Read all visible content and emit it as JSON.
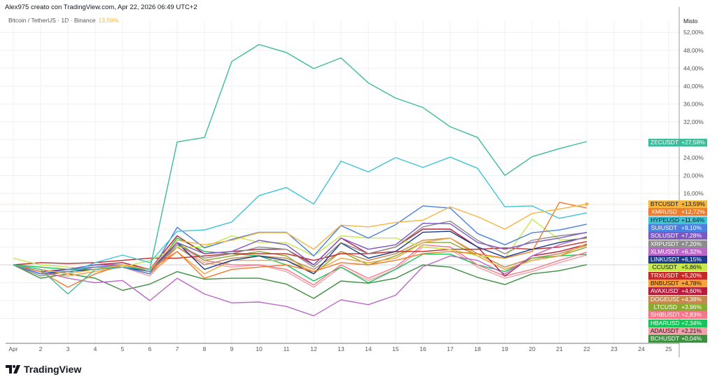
{
  "header": {
    "credit": "Alex975 creato con TradingView.com, Apr 22, 2026 06:49 UTC+2",
    "symbol": "Bitcoin / TetherUS · 1D · Binance",
    "symbol_value": "13,59%"
  },
  "logo": "TradingView",
  "chart_data": {
    "type": "line",
    "ylabel": "Misto",
    "y_ticks": [
      "52,00%",
      "48,00%",
      "44,00%",
      "40,00%",
      "36,00%",
      "32,00%",
      "24,00%",
      "20,00%",
      "16,00%"
    ],
    "y_tick_values": [
      52,
      48,
      44,
      40,
      36,
      32,
      24,
      20,
      16
    ],
    "ylim": [
      -18,
      56
    ],
    "x_ticks": [
      "Apr",
      "2",
      "3",
      "4",
      "5",
      "6",
      "7",
      "8",
      "9",
      "10",
      "11",
      "12",
      "13",
      "14",
      "15",
      "16",
      "17",
      "18",
      "19",
      "20",
      "21",
      "22",
      "23",
      "24",
      "25"
    ],
    "x": [
      1,
      2,
      3,
      4,
      5,
      6,
      7,
      8,
      9,
      10,
      11,
      12,
      13,
      14,
      15,
      16,
      17,
      18,
      19,
      20,
      21,
      22
    ],
    "grid": true,
    "series": [
      {
        "name": "ZECUSDT",
        "label": "+27,58%",
        "color": "#3dbb9a",
        "values": [
          0,
          -1,
          -6.5,
          -1,
          -0.5,
          -1,
          27.5,
          28.5,
          45.5,
          49.3,
          47.5,
          43.9,
          46.3,
          40.7,
          37.3,
          35.2,
          30.9,
          28.5,
          20,
          24.2,
          26,
          27.58
        ]
      },
      {
        "name": "BTCUSDT",
        "label": "+13,59%",
        "color": "#f5b540",
        "values": [
          0,
          -1,
          -2,
          -1,
          0,
          -1,
          5.5,
          4.5,
          5.5,
          7.2,
          7.2,
          3.5,
          8.9,
          8.5,
          9.5,
          10,
          13,
          10.8,
          8,
          11.5,
          12.5,
          13.59
        ]
      },
      {
        "name": "XMRUSD",
        "label": "+12,72%",
        "color": "#f07b2a",
        "values": [
          0,
          -1.5,
          -5,
          -2,
          0,
          -1,
          3,
          -3,
          -1,
          -0.5,
          0,
          -1.5,
          0.5,
          0,
          1,
          2.5,
          3,
          2.5,
          1.5,
          3,
          14,
          12.72
        ]
      },
      {
        "name": "HYPEUSD",
        "label": "+11,64%",
        "color": "#3fc4d6",
        "values": [
          0,
          -1,
          -2,
          0.5,
          2.2,
          0.5,
          7.5,
          7.8,
          9.6,
          15.5,
          17.3,
          13.6,
          23.2,
          20.8,
          24,
          21.8,
          24.1,
          21.6,
          13,
          13.2,
          10.4,
          11.64
        ]
      },
      {
        "name": "SUIUSDT",
        "label": "+9,10%",
        "color": "#4a80e0",
        "values": [
          0,
          -2,
          -1,
          -0.5,
          -0.5,
          -2,
          8.4,
          3.8,
          5.7,
          7.3,
          7.3,
          2,
          8.8,
          6,
          9,
          13.2,
          12.7,
          7,
          4.5,
          7.2,
          7.8,
          9.1
        ]
      },
      {
        "name": "SOLUSDT",
        "label": "+7,28%",
        "color": "#7e57c2",
        "values": [
          0,
          -2,
          -1,
          0,
          0,
          -1,
          5,
          2.5,
          3,
          5.5,
          4.5,
          0,
          6,
          3.5,
          4.5,
          9.3,
          9.2,
          5,
          3.5,
          5,
          6,
          7.28
        ]
      },
      {
        "name": "XRPUSDT",
        "label": "+7,20%",
        "color": "#8c8c8c",
        "values": [
          0,
          -2.5,
          -1.5,
          -0.5,
          0,
          -1.5,
          4.5,
          1.5,
          2.5,
          4,
          3.5,
          -0.5,
          5,
          2.5,
          4,
          8.5,
          9.8,
          5.5,
          2.5,
          5.5,
          6.5,
          7.2
        ]
      },
      {
        "name": "XLMUSDT",
        "label": "+6,32%",
        "color": "#ba68c8",
        "values": [
          0,
          -1.5,
          -3,
          -4,
          -3.5,
          -8,
          -3,
          -6.5,
          -8.5,
          -8.3,
          -9.3,
          -11.4,
          -7.8,
          -8.9,
          -6.8,
          -0.4,
          2,
          1,
          -2,
          2,
          4.5,
          6.32
        ]
      },
      {
        "name": "LINKUSDT",
        "label": "+6,15%",
        "color": "#1a3a8a",
        "values": [
          0,
          -2,
          -1.5,
          -1,
          -0.5,
          -1.5,
          5,
          -1,
          1,
          2,
          1,
          -2,
          4.9,
          1.5,
          3,
          7.3,
          7.5,
          4,
          1.7,
          3.5,
          5,
          6.15
        ]
      },
      {
        "name": "CCUSDT",
        "label": "+5,86%",
        "color": "#c6e84a",
        "values": [
          1.5,
          0,
          -0.5,
          -1,
          -0.5,
          1,
          4,
          4,
          6.5,
          5,
          5,
          2,
          6.5,
          6,
          6,
          4,
          3.5,
          2,
          1.5,
          10.2,
          5.6,
          5.86
        ]
      },
      {
        "name": "TRXUSDT",
        "label": "+5,20%",
        "color": "#c62828",
        "values": [
          0,
          0.5,
          0.3,
          0.5,
          1,
          1.5,
          1.5,
          2,
          2.5,
          2.5,
          2.5,
          1,
          2.5,
          2.5,
          3,
          3,
          3.5,
          3.5,
          3.8,
          3.5,
          4,
          5.2
        ]
      },
      {
        "name": "BNBUSDT",
        "label": "+4,78%",
        "color": "#f7a23a",
        "values": [
          0,
          -2,
          -2.5,
          -1.5,
          -0.5,
          -2,
          3,
          -2,
          1,
          1,
          1,
          -1.5,
          1.5,
          0.5,
          1.5,
          5,
          6,
          2,
          -1,
          1,
          2,
          4.78
        ]
      },
      {
        "name": "AVAXUSDT",
        "label": "+4,60%",
        "color": "#b71c3c",
        "values": [
          0,
          -1.5,
          -1,
          0,
          0.5,
          -1,
          6.5,
          2.5,
          3,
          3.5,
          3.5,
          0,
          6,
          2.5,
          4,
          8,
          8,
          4,
          -2.5,
          2,
          3,
          4.6
        ]
      },
      {
        "name": "DOGEUSDT",
        "label": "+4,38%",
        "color": "#c4894f",
        "values": [
          0,
          -2,
          -1.5,
          -1,
          0,
          -1.5,
          4,
          0,
          1.5,
          2,
          1.5,
          -1,
          3,
          1,
          2.5,
          5.5,
          6,
          2.5,
          -0.5,
          1.5,
          2.5,
          4.38
        ]
      },
      {
        "name": "LTCUSD",
        "label": "+3,96%",
        "color": "#8aab2d",
        "values": [
          0,
          -1.5,
          -1,
          -0.5,
          0,
          -1,
          5,
          1,
          2,
          3,
          2,
          -2,
          3,
          0,
          2,
          5,
          5,
          2,
          -1,
          1,
          2,
          3.96
        ]
      },
      {
        "name": "SHIBUSDT",
        "label": "+2,83%",
        "color": "#f4788a",
        "values": [
          0,
          -2,
          -1.5,
          -1,
          -0.5,
          -2,
          4.5,
          1,
          0,
          0,
          -1,
          -4.5,
          0,
          -3,
          -0.5,
          4.5,
          4,
          0,
          -2.5,
          -1,
          1,
          2.83
        ]
      },
      {
        "name": "HBARUSDT",
        "label": "+2,34%",
        "color": "#18c35a",
        "values": [
          0,
          -0.5,
          -1,
          -1,
          -0.5,
          -2,
          6,
          3,
          2.5,
          2,
          0,
          -3.6,
          -0.5,
          -4,
          -1,
          2.4,
          2.4,
          0,
          -1.5,
          1.5,
          2,
          2.34
        ]
      },
      {
        "name": "ADAUSDT",
        "label": "+2,21%",
        "color": "#f4a0a8",
        "values": [
          0,
          -2,
          -1.5,
          -1,
          -0.5,
          -2.5,
          4,
          0.5,
          -0.5,
          0,
          -1.5,
          -5,
          -0.5,
          -3.5,
          -1,
          4,
          3.5,
          -0.5,
          -3,
          -1.5,
          0.5,
          2.21
        ]
      },
      {
        "name": "BCHUSDT",
        "label": "+0,04%",
        "color": "#3e8e41",
        "values": [
          0,
          -3,
          -2,
          -3,
          -5.7,
          -4.3,
          -1.5,
          -3.2,
          -3,
          -3,
          -4.3,
          -7.5,
          -3.6,
          -4.1,
          -3,
          0,
          -0.5,
          -2.8,
          -4.4,
          -2,
          -1.3,
          0.04
        ]
      }
    ]
  }
}
